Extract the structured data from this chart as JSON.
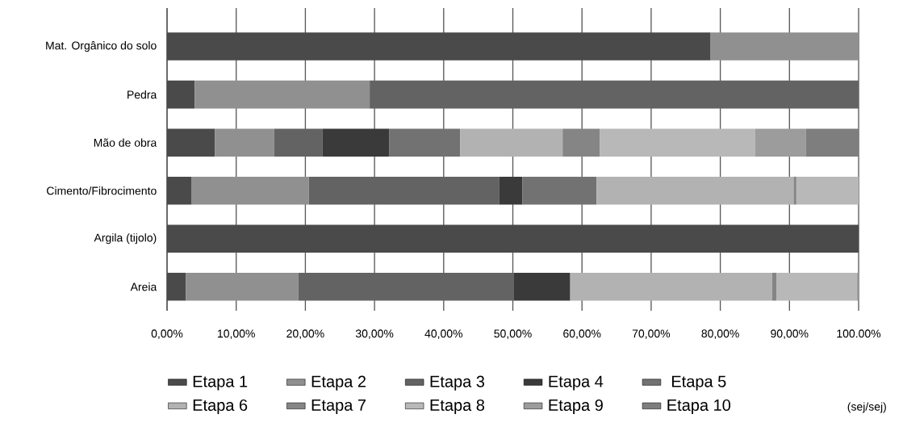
{
  "chart_data": {
    "type": "bar",
    "orientation": "horizontal",
    "stacked": true,
    "categories": [
      "Mat. Orgânico do solo",
      "Pedra",
      "Mão de obra",
      "Cimento/Fibrocimento",
      "Argila (tijolo)",
      "Areia"
    ],
    "series": [
      {
        "name": "Etapa 1",
        "color": "#4a4a4a",
        "values": [
          78.6,
          4.0,
          6.9,
          3.5,
          100,
          2.7
        ]
      },
      {
        "name": "Etapa 2",
        "color": "#909090",
        "values": [
          21.4,
          25.3,
          8.6,
          17.0,
          null,
          16.3
        ]
      },
      {
        "name": "Etapa 3",
        "color": "#636363",
        "values": [
          null,
          70.7,
          7.0,
          27.5,
          null,
          31.1
        ]
      },
      {
        "name": "Etapa 4",
        "color": "#3a3a3a",
        "values": [
          null,
          null,
          9.6,
          3.4,
          null,
          8.2
        ]
      },
      {
        "name": "Etapa 5",
        "color": "#727272",
        "values": [
          null,
          null,
          10.3,
          10.7,
          null,
          null
        ]
      },
      {
        "name": "Etapa 6",
        "color": "#b2b2b2",
        "values": [
          null,
          null,
          14.8,
          28.5,
          null,
          29.2
        ]
      },
      {
        "name": "Etapa 7",
        "color": "#858585",
        "values": [
          null,
          null,
          5.4,
          0.4,
          null,
          0.6
        ]
      },
      {
        "name": "Etapa 8",
        "color": "#b8b8b8",
        "values": [
          null,
          null,
          22.4,
          9.0,
          null,
          11.6
        ]
      },
      {
        "name": "Etapa 9",
        "color": "#9c9c9c",
        "values": [
          null,
          null,
          7.4,
          null,
          null,
          0.3
        ]
      },
      {
        "name": "Etapa 10",
        "color": "#7e7e7e",
        "values": [
          null,
          null,
          7.6,
          null,
          null,
          null
        ]
      }
    ],
    "xlim": [
      0,
      100
    ],
    "xticks": [
      {
        "value": 0,
        "label": "0,00%"
      },
      {
        "value": 10,
        "label": "10,00%"
      },
      {
        "value": 20,
        "label": "20,00%"
      },
      {
        "value": 30,
        "label": "30,00%"
      },
      {
        "value": 40,
        "label": "40,00%"
      },
      {
        "value": 50,
        "label": "50,00%"
      },
      {
        "value": 60,
        "label": "60,00%"
      },
      {
        "value": 70,
        "label": "70,00%"
      },
      {
        "value": 80,
        "label": "80,00%"
      },
      {
        "value": 90,
        "label": "90,00%"
      },
      {
        "value": 100,
        "label": "100.00%"
      }
    ],
    "annotations": [
      "(sej/sej)"
    ],
    "grid": "x",
    "legend": "bottom"
  }
}
